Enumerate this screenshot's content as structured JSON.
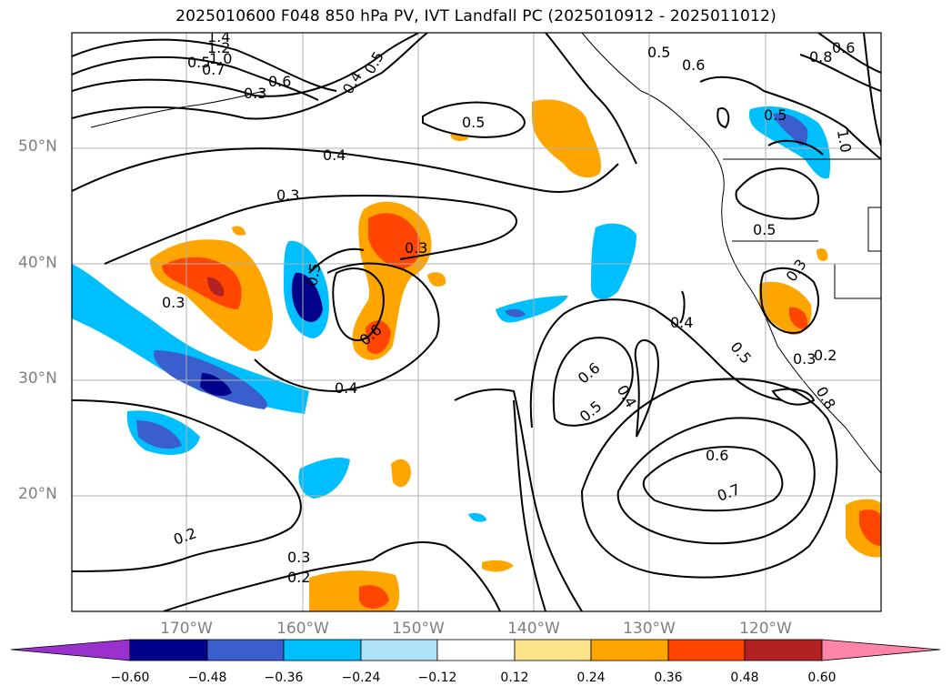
{
  "title": "2025010600 F048 850 hPa PV, IVT Landfall PC (2025010912 - 2025011012)",
  "map": {
    "lat_labels": [
      "50°N",
      "40°N",
      "30°N",
      "20°N"
    ],
    "lon_labels": [
      "170°W",
      "160°W",
      "150°W",
      "140°W",
      "130°W",
      "120°W"
    ],
    "contour_labels": [
      "1.4",
      "1.2",
      "1.0",
      "0.7",
      "0.6",
      "0.5",
      "0.3",
      "0.4",
      "0.5",
      "0.6",
      "0.5",
      "0.5",
      "0.6",
      "0.8",
      "1.0",
      "0.4",
      "0.3",
      "0.5",
      "0.3",
      "0.3",
      "0.5",
      "0.6",
      "0.4",
      "0.4",
      "0.5",
      "0.3",
      "0.6",
      "0.5",
      "0.4",
      "0.6",
      "0.7",
      "0.2",
      "0.3",
      "0.2",
      "0.3",
      "0.5",
      "0.2",
      "0.8"
    ]
  },
  "colorbar": {
    "ticks": [
      "−0.60",
      "−0.48",
      "−0.36",
      "−0.24",
      "−0.12",
      "0.12",
      "0.24",
      "0.36",
      "0.48",
      "0.60"
    ],
    "colors": [
      "#9932cc",
      "#00008b",
      "#3a5fcd",
      "#00bfff",
      "#aee3fa",
      "#ffffff",
      "#fbe38a",
      "#ffa500",
      "#ff4500",
      "#b22222",
      "#ff85a8"
    ]
  }
}
